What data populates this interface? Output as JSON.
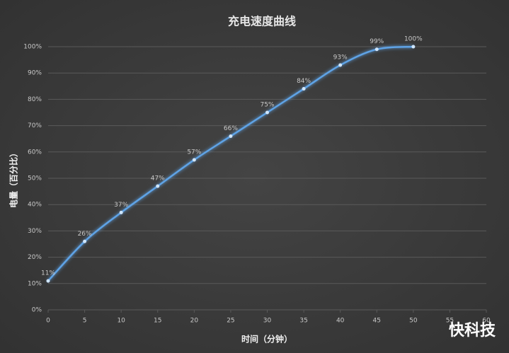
{
  "chart_data": {
    "type": "line",
    "title": "充电速度曲线",
    "x_label": "时间（分钟）",
    "y_label": "电量（百分比）",
    "x": [
      0,
      5,
      10,
      15,
      20,
      25,
      30,
      35,
      40,
      45,
      50
    ],
    "values": [
      11,
      26,
      37,
      47,
      57,
      66,
      75,
      84,
      93,
      99,
      100
    ],
    "value_labels": [
      "11%",
      "26%",
      "37%",
      "47%",
      "57%",
      "66%",
      "75%",
      "84%",
      "93%",
      "99%",
      "100%"
    ],
    "color": "#5ea3e6",
    "xlim": [
      0,
      60
    ],
    "xticks": [
      0,
      5,
      10,
      15,
      20,
      25,
      30,
      35,
      40,
      45,
      50,
      55,
      60
    ],
    "ylim": [
      0,
      100
    ],
    "yticks": [
      {
        "value": 0,
        "label": "0%"
      },
      {
        "value": 10,
        "label": "10%"
      },
      {
        "value": 20,
        "label": "20%"
      },
      {
        "value": 30,
        "label": "30%"
      },
      {
        "value": 40,
        "label": "40%"
      },
      {
        "value": 50,
        "label": "50%"
      },
      {
        "value": 60,
        "label": "60%"
      },
      {
        "value": 70,
        "label": "70%"
      },
      {
        "value": 80,
        "label": "80%"
      },
      {
        "value": 90,
        "label": "90%"
      },
      {
        "value": 100,
        "label": "100%"
      }
    ],
    "grid": true
  },
  "watermark": "快科技"
}
